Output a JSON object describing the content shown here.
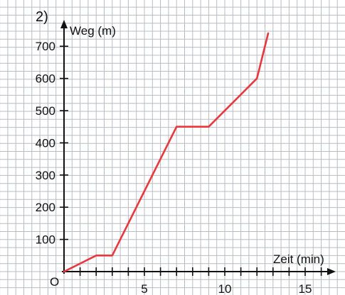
{
  "problem_number": "2)",
  "chart_data": {
    "type": "line",
    "title": "",
    "xlabel": "Zeit (min)",
    "ylabel": "Weg (m)",
    "origin_label": "O",
    "x_tick_labels": [
      "5",
      "10",
      "15"
    ],
    "x_tick_values": [
      5,
      10,
      15
    ],
    "y_tick_labels": [
      "100",
      "200",
      "300",
      "400",
      "500",
      "600",
      "700"
    ],
    "y_tick_values": [
      100,
      200,
      300,
      400,
      500,
      600,
      700
    ],
    "xlim": [
      0,
      16.5
    ],
    "ylim": [
      0,
      760
    ],
    "grid": true,
    "line_color": "#e8383d",
    "grid_color": "#b9bcc4",
    "axis_color": "#111111",
    "series": [
      {
        "x": [
          0,
          2,
          3,
          7,
          9,
          12,
          12.7
        ],
        "y": [
          0,
          50,
          50,
          450,
          450,
          600,
          740
        ]
      }
    ]
  }
}
